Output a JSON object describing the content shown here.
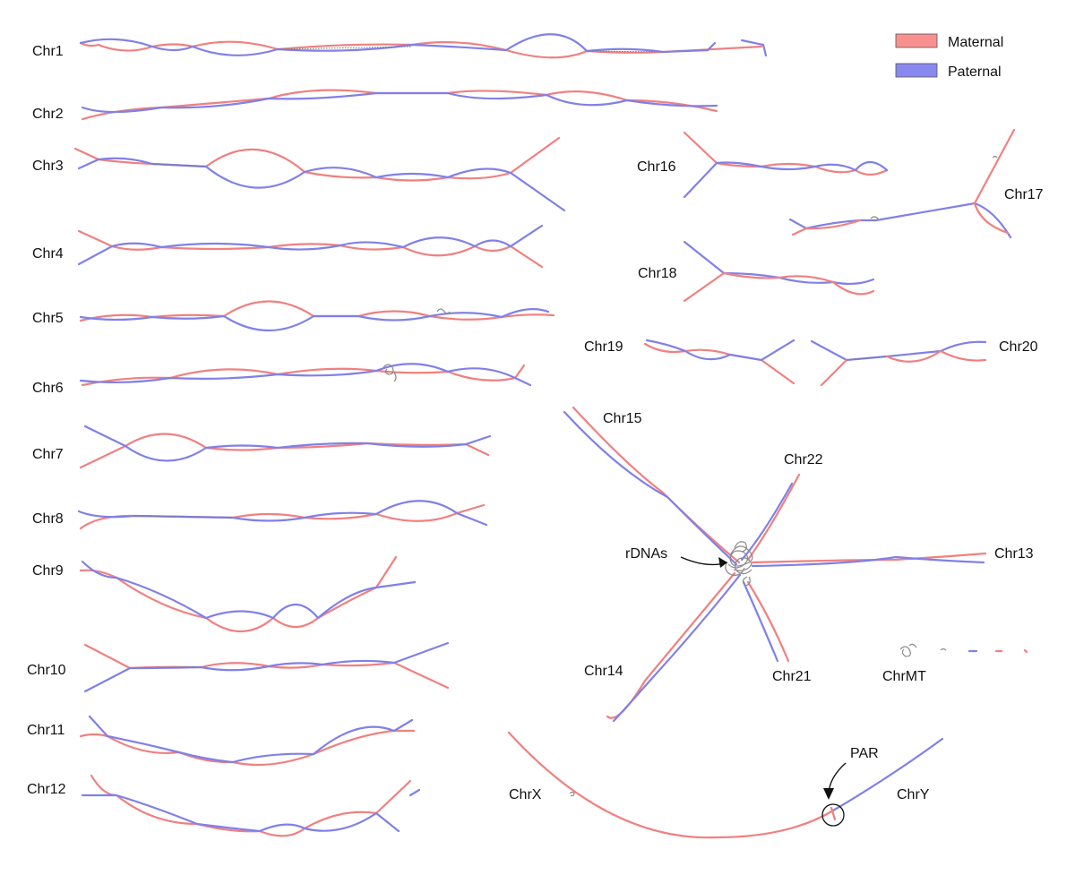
{
  "legend": {
    "maternal_label": "Maternal",
    "paternal_label": "Paternal",
    "maternal_color": "#f08080",
    "paternal_color": "#8080e8"
  },
  "chromosomes": {
    "chr1": "Chr1",
    "chr2": "Chr2",
    "chr3": "Chr3",
    "chr4": "Chr4",
    "chr5": "Chr5",
    "chr6": "Chr6",
    "chr7": "Chr7",
    "chr8": "Chr8",
    "chr9": "Chr9",
    "chr10": "Chr10",
    "chr11": "Chr11",
    "chr12": "Chr12",
    "chr13": "Chr13",
    "chr14": "Chr14",
    "chr15": "Chr15",
    "chr16": "Chr16",
    "chr17": "Chr17",
    "chr18": "Chr18",
    "chr19": "Chr19",
    "chr20": "Chr20",
    "chr21": "Chr21",
    "chr22": "Chr22",
    "chrx": "ChrX",
    "chry": "ChrY",
    "chrmt": "ChrMT"
  },
  "annotations": {
    "rdnas": "rDNAs",
    "par": "PAR"
  }
}
